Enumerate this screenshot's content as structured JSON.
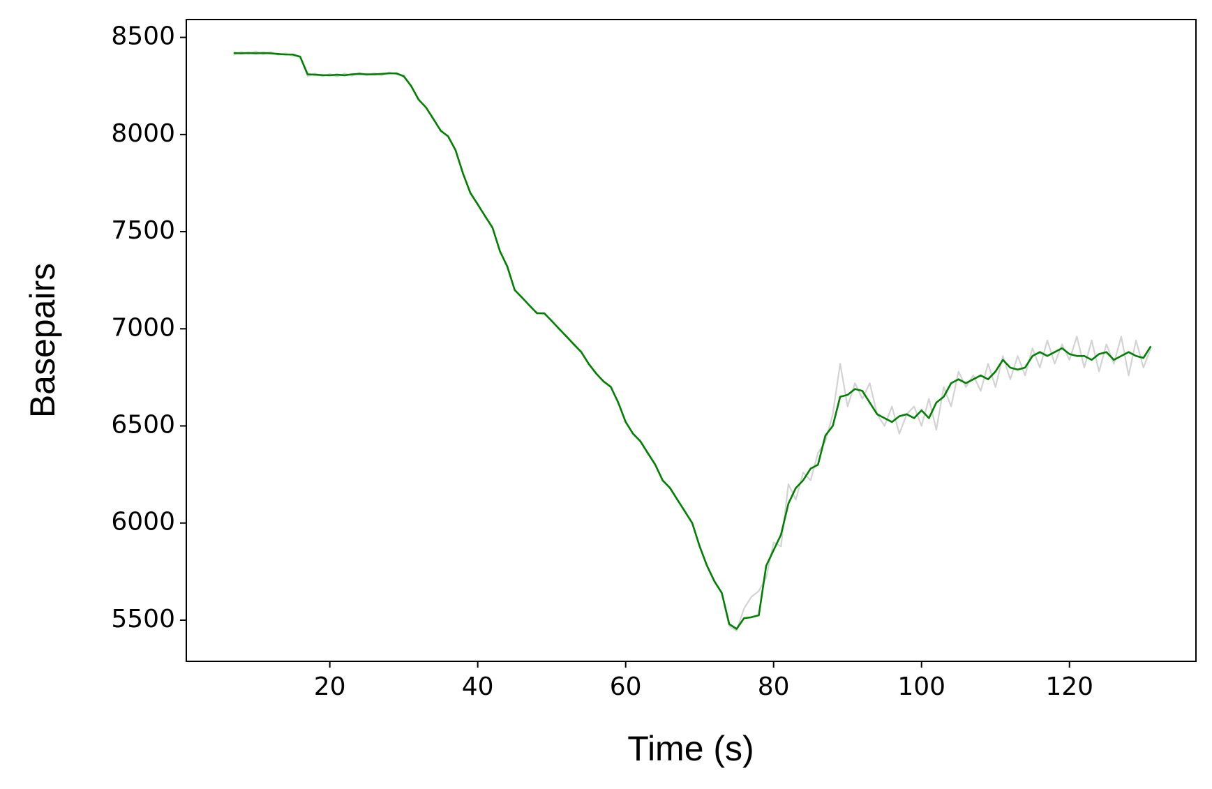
{
  "chart_data": {
    "type": "line",
    "x_label": "Time (s)",
    "y_label": "Basepairs",
    "x": [
      7,
      8,
      9,
      10,
      11,
      12,
      13,
      14,
      15,
      16,
      17,
      18,
      19,
      20,
      21,
      22,
      23,
      24,
      25,
      26,
      27,
      28,
      29,
      30,
      31,
      32,
      33,
      34,
      35,
      36,
      37,
      38,
      39,
      40,
      41,
      42,
      43,
      44,
      45,
      46,
      47,
      48,
      49,
      50,
      51,
      52,
      53,
      54,
      55,
      56,
      57,
      58,
      59,
      60,
      61,
      62,
      63,
      64,
      65,
      66,
      67,
      68,
      69,
      70,
      71,
      72,
      73,
      74,
      75,
      76,
      77,
      78,
      79,
      80,
      81,
      82,
      83,
      84,
      85,
      86,
      87,
      88,
      89,
      90,
      91,
      92,
      93,
      94,
      95,
      96,
      97,
      98,
      99,
      100,
      101,
      102,
      103,
      104,
      105,
      106,
      107,
      108,
      109,
      110,
      111,
      112,
      113,
      114,
      115,
      116,
      117,
      118,
      119,
      120,
      121,
      122,
      123,
      124,
      125,
      126,
      127,
      128,
      129,
      130,
      131
    ],
    "series": [
      {
        "color": "#d3d3d3",
        "values": [
          8410,
          8425,
          8415,
          8428,
          8412,
          8425,
          8410,
          8418,
          8405,
          8405,
          8300,
          8315,
          8300,
          8312,
          8298,
          8315,
          8302,
          8318,
          8305,
          8316,
          8305,
          8320,
          8310,
          8305,
          8245,
          8185,
          8135,
          8085,
          8015,
          7995,
          7915,
          7805,
          7695,
          7645,
          7575,
          7525,
          7395,
          7325,
          7195,
          7165,
          7115,
          7085,
          7075,
          7045,
          6995,
          6965,
          6915,
          6885,
          6815,
          6775,
          6725,
          6705,
          6615,
          6525,
          6455,
          6425,
          6355,
          6305,
          6215,
          6185,
          6115,
          6065,
          5995,
          5885,
          5775,
          5705,
          5635,
          5470,
          5445,
          5560,
          5620,
          5650,
          5720,
          5900,
          5880,
          6200,
          6120,
          6260,
          6220,
          6360,
          6420,
          6560,
          6820,
          6600,
          6720,
          6640,
          6720,
          6560,
          6500,
          6600,
          6460,
          6560,
          6600,
          6500,
          6640,
          6480,
          6700,
          6600,
          6780,
          6700,
          6760,
          6680,
          6820,
          6700,
          6860,
          6740,
          6860,
          6760,
          6900,
          6800,
          6940,
          6820,
          6920,
          6840,
          6960,
          6800,
          6940,
          6780,
          6920,
          6820,
          6960,
          6760,
          6940,
          6800,
          6900
        ]
      },
      {
        "color": "#008000",
        "values": [
          8420,
          8418,
          8420,
          8418,
          8420,
          8418,
          8415,
          8412,
          8412,
          8400,
          8310,
          8308,
          8306,
          8305,
          8308,
          8305,
          8310,
          8312,
          8310,
          8310,
          8312,
          8315,
          8315,
          8300,
          8250,
          8180,
          8140,
          8080,
          8020,
          7990,
          7920,
          7800,
          7700,
          7640,
          7580,
          7520,
          7400,
          7320,
          7200,
          7160,
          7120,
          7080,
          7080,
          7040,
          7000,
          6960,
          6920,
          6880,
          6820,
          6770,
          6730,
          6700,
          6620,
          6520,
          6460,
          6420,
          6360,
          6300,
          6220,
          6180,
          6120,
          6060,
          6000,
          5880,
          5780,
          5700,
          5640,
          5480,
          5455,
          5510,
          5515,
          5525,
          5780,
          5860,
          5940,
          6100,
          6180,
          6220,
          6280,
          6300,
          6450,
          6500,
          6650,
          6660,
          6690,
          6680,
          6620,
          6560,
          6540,
          6520,
          6550,
          6560,
          6540,
          6580,
          6540,
          6620,
          6650,
          6720,
          6740,
          6720,
          6740,
          6760,
          6740,
          6780,
          6840,
          6800,
          6790,
          6800,
          6860,
          6880,
          6860,
          6880,
          6900,
          6870,
          6860,
          6860,
          6840,
          6870,
          6880,
          6840,
          6860,
          6880,
          6860,
          6850,
          6910
        ]
      }
    ],
    "xlim": [
      0.6,
      137.1
    ],
    "ylim": [
      5288,
      8592
    ],
    "xticks": [
      20,
      40,
      60,
      80,
      100,
      120
    ],
    "yticks": [
      5500,
      6000,
      6500,
      7000,
      7500,
      8000,
      8500
    ]
  }
}
